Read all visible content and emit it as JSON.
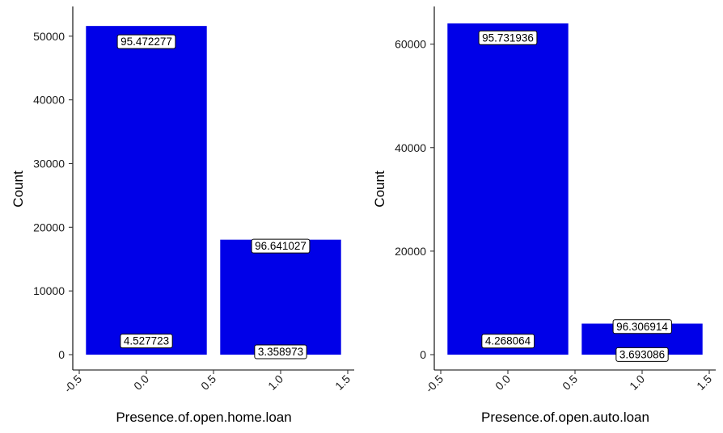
{
  "colors": {
    "bar": "#0000e8",
    "label_bg": "#ffffff",
    "axis": "#000000"
  },
  "chart_data": [
    {
      "type": "bar",
      "title": "",
      "xlabel": "Presence.of.open.home.loan",
      "ylabel": "Count",
      "xlim": [
        -0.5,
        1.5
      ],
      "ylim": [
        0,
        52000
      ],
      "xticks": [
        "-0.5",
        "0.0",
        "0.5",
        "1.0",
        "1.5"
      ],
      "yticks": [
        "0",
        "10000",
        "20000",
        "30000",
        "40000",
        "50000"
      ],
      "bars": [
        {
          "x": 0,
          "value": 51600
        },
        {
          "x": 1,
          "value": 18050
        }
      ],
      "labels": [
        {
          "x": 0,
          "y": 49200,
          "text": "95.472277"
        },
        {
          "x": 0,
          "y": 2200,
          "text": "4.527723"
        },
        {
          "x": 1,
          "y": 17100,
          "text": "96.641027"
        },
        {
          "x": 1,
          "y": 500,
          "text": "3.358973"
        }
      ]
    },
    {
      "type": "bar",
      "title": "",
      "xlabel": "Presence.of.open.auto.loan",
      "ylabel": "Count",
      "xlim": [
        -0.5,
        1.5
      ],
      "ylim": [
        0,
        64000
      ],
      "xticks": [
        "-0.5",
        "0.0",
        "0.5",
        "1.0",
        "1.5"
      ],
      "yticks": [
        "0",
        "20000",
        "40000",
        "60000"
      ],
      "bars": [
        {
          "x": 0,
          "value": 64000
        },
        {
          "x": 1,
          "value": 6000
        }
      ],
      "labels": [
        {
          "x": 0,
          "y": 61300,
          "text": "95.731936"
        },
        {
          "x": 0,
          "y": 2700,
          "text": "4.268064"
        },
        {
          "x": 1,
          "y": 5500,
          "text": "96.306914"
        },
        {
          "x": 1,
          "y": 100,
          "text": "3.693086"
        }
      ]
    }
  ]
}
